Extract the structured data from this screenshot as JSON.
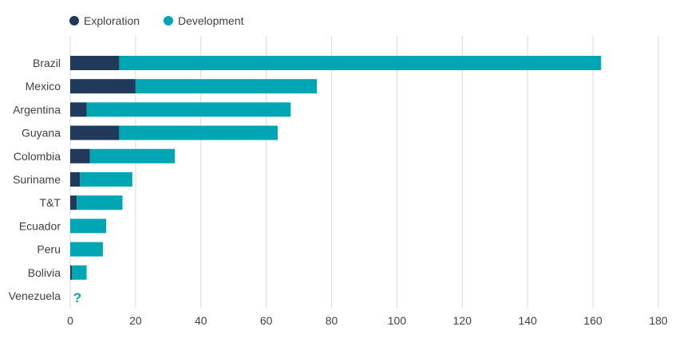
{
  "chart_data": {
    "type": "bar",
    "orientation": "horizontal",
    "stacked": true,
    "title": "",
    "xlabel": "",
    "ylabel": "",
    "categories": [
      "Brazil",
      "Mexico",
      "Argentina",
      "Guyana",
      "Colombia",
      "Suriname",
      "T&T",
      "Ecuador",
      "Peru",
      "Bolivia",
      "Venezuela"
    ],
    "series": [
      {
        "name": "Exploration",
        "color": "#213a5c",
        "values": [
          15,
          20,
          5,
          15,
          6,
          3,
          2,
          0,
          0,
          0.5,
          null
        ]
      },
      {
        "name": "Development",
        "color": "#00a6b4",
        "values": [
          147.5,
          55.5,
          62.5,
          48.5,
          26,
          16,
          14,
          11,
          10,
          4.5,
          null
        ]
      }
    ],
    "annotations": [
      {
        "category": "Venezuela",
        "text": "?",
        "color": "#00a6b4"
      }
    ],
    "xlim": [
      0,
      180
    ],
    "xticks": [
      0,
      20,
      40,
      60,
      80,
      100,
      120,
      140,
      160,
      180
    ],
    "grid": true,
    "gridline_color": "#d9d9d9",
    "legend": "top-left"
  }
}
